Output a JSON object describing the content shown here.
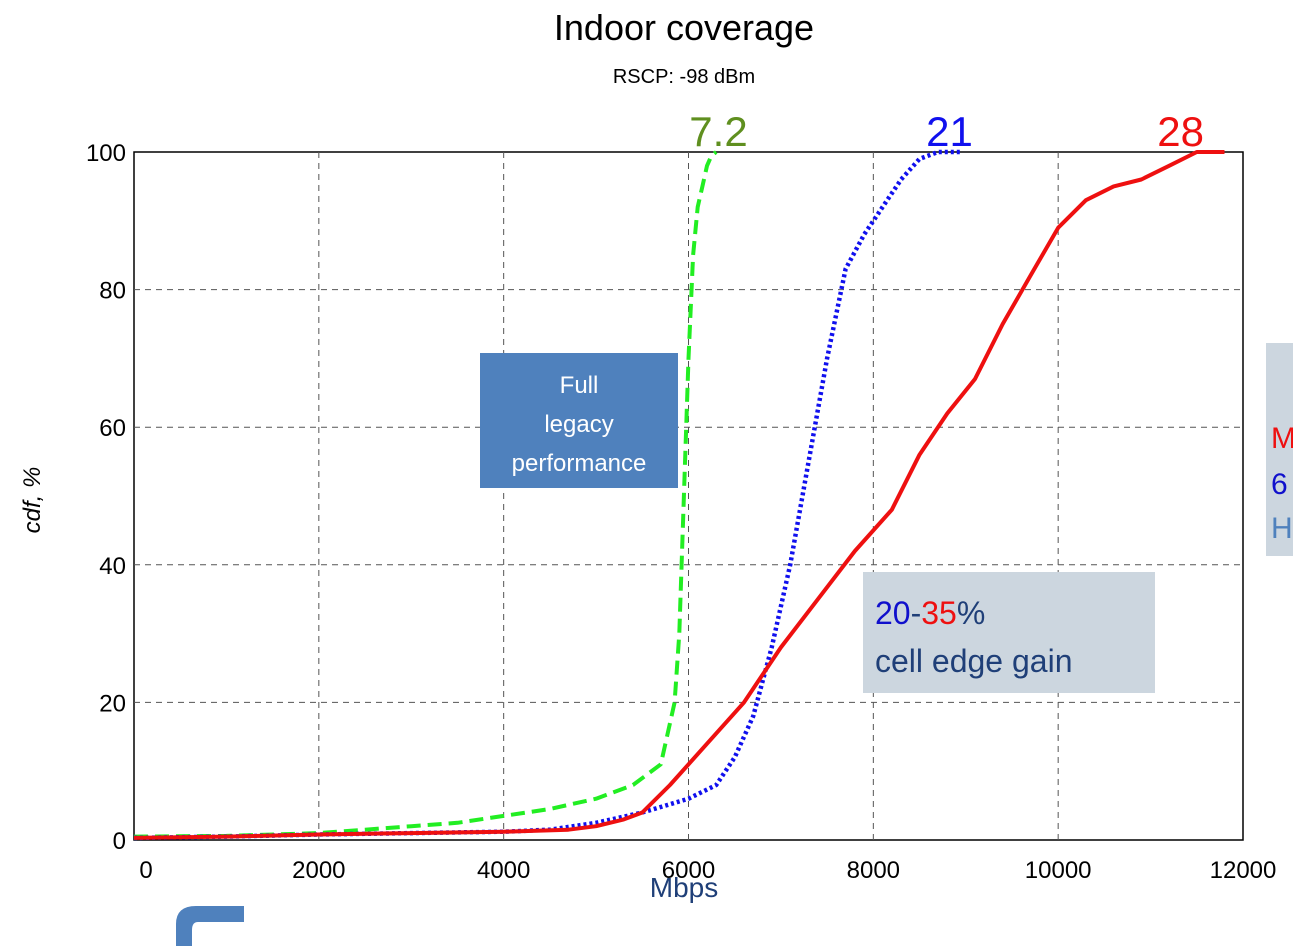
{
  "chart_data": {
    "type": "line",
    "title": "Indoor coverage",
    "subtitle": "RSCP: -98 dBm",
    "xlabel": "Mbps",
    "ylabel": "cdf, %",
    "xlim": [
      0,
      12000
    ],
    "ylim": [
      0,
      100
    ],
    "xticks": [
      "0",
      "2000",
      "4000",
      "6000",
      "8000",
      "10000",
      "12000"
    ],
    "yticks": [
      "0",
      "20",
      "40",
      "60",
      "80",
      "100"
    ],
    "grid": true,
    "series": [
      {
        "name": "7.2",
        "color": "#22ee22",
        "style": "dashed",
        "points": [
          [
            0,
            0.5
          ],
          [
            1000,
            0.6
          ],
          [
            2000,
            1
          ],
          [
            2500,
            1.5
          ],
          [
            3000,
            2
          ],
          [
            3500,
            2.5
          ],
          [
            4000,
            3.5
          ],
          [
            4500,
            4.5
          ],
          [
            5000,
            6
          ],
          [
            5400,
            8
          ],
          [
            5700,
            11
          ],
          [
            5850,
            20
          ],
          [
            5900,
            30
          ],
          [
            5950,
            50
          ],
          [
            6000,
            70
          ],
          [
            6050,
            85
          ],
          [
            6100,
            92
          ],
          [
            6150,
            95
          ],
          [
            6200,
            98
          ],
          [
            6250,
            99.5
          ],
          [
            6300,
            100
          ]
        ]
      },
      {
        "name": "21",
        "color": "#1010ee",
        "style": "dotted",
        "points": [
          [
            0,
            0.3
          ],
          [
            1000,
            0.5
          ],
          [
            2000,
            0.8
          ],
          [
            3000,
            1
          ],
          [
            4000,
            1.2
          ],
          [
            4500,
            1.5
          ],
          [
            5000,
            2.5
          ],
          [
            5500,
            4
          ],
          [
            6000,
            6
          ],
          [
            6300,
            8
          ],
          [
            6500,
            12
          ],
          [
            6700,
            18
          ],
          [
            6900,
            28
          ],
          [
            7100,
            40
          ],
          [
            7300,
            55
          ],
          [
            7500,
            70
          ],
          [
            7700,
            83
          ],
          [
            7900,
            88
          ],
          [
            8100,
            92
          ],
          [
            8300,
            96
          ],
          [
            8500,
            99
          ],
          [
            8700,
            100
          ],
          [
            8950,
            100
          ]
        ]
      },
      {
        "name": "28",
        "color": "#ee1010",
        "style": "solid",
        "points": [
          [
            0,
            0.3
          ],
          [
            1000,
            0.5
          ],
          [
            2000,
            0.8
          ],
          [
            3000,
            1
          ],
          [
            4000,
            1.2
          ],
          [
            4700,
            1.5
          ],
          [
            5000,
            2
          ],
          [
            5300,
            3
          ],
          [
            5500,
            4
          ],
          [
            5800,
            8
          ],
          [
            6200,
            14
          ],
          [
            6600,
            20
          ],
          [
            7000,
            28
          ],
          [
            7400,
            35
          ],
          [
            7800,
            42
          ],
          [
            8200,
            48
          ],
          [
            8500,
            56
          ],
          [
            8800,
            62
          ],
          [
            9100,
            67
          ],
          [
            9400,
            75
          ],
          [
            9700,
            82
          ],
          [
            10000,
            89
          ],
          [
            10300,
            93
          ],
          [
            10600,
            95
          ],
          [
            10900,
            96
          ],
          [
            11200,
            98
          ],
          [
            11500,
            100
          ],
          [
            11800,
            100
          ]
        ]
      }
    ],
    "top_labels": [
      {
        "text": "7.2",
        "x": 6000,
        "color": "#5f8f1f"
      },
      {
        "text": "21",
        "x": 8500,
        "color": "#1010ee"
      },
      {
        "text": "28",
        "x": 11000,
        "color": "#ee1010"
      }
    ]
  },
  "annotations": {
    "legacy_box": {
      "line1": "Full",
      "line2": "legacy",
      "line3": "performance",
      "bg": "#4f81bd"
    },
    "gain_box": {
      "part1": "20",
      "dash": "-",
      "part2": "35",
      "pct": "%",
      "line2": "cell edge gain",
      "bg": "#ccd6df"
    },
    "side_box": {
      "line1": "M",
      "line2": "6",
      "line3": "H",
      "bg": "#ccd6df"
    }
  }
}
